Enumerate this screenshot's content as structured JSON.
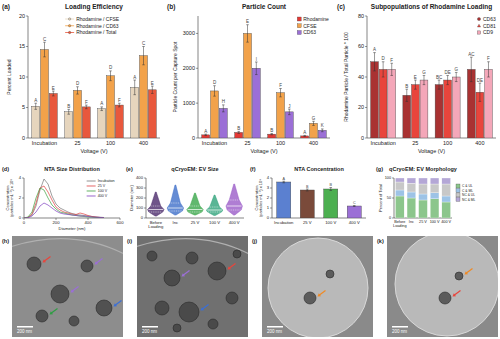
{
  "chart_data": [
    {
      "panel": "(a)",
      "type": "bar",
      "title": "Loading Efficiency",
      "x_label": "Voltage (V)",
      "y_label": "Percent Loaded",
      "categories": [
        "Incubation",
        "25",
        "100",
        "400"
      ],
      "ylim": [
        0,
        20
      ],
      "yticks": [
        0,
        5,
        10,
        15,
        20
      ],
      "legend": "top",
      "marker": "circle",
      "series": [
        {
          "name": "Rhodamine / CFSE",
          "color": "#e6d5bd",
          "values": [
            5.2,
            4.3,
            4.8,
            8.3
          ],
          "errors": [
            0.5,
            0.4,
            0.3,
            1.2
          ],
          "annotations": [
            "A",
            "B",
            "A",
            "A"
          ]
        },
        {
          "name": "Rhodamine / CD63",
          "color": "#f2a24a",
          "values": [
            14.5,
            7.8,
            10.2,
            13.5
          ],
          "errors": [
            1.2,
            0.6,
            0.8,
            1.5
          ],
          "annotations": [
            "C",
            "D",
            "D",
            "C"
          ]
        },
        {
          "name": "Rhodamine / Total",
          "color": "#e8583d",
          "values": [
            7.3,
            5.1,
            5.4,
            7.9
          ],
          "errors": [
            0.4,
            0.3,
            0.3,
            0.6
          ],
          "annotations": [
            "E",
            "F",
            "F",
            "E"
          ]
        }
      ]
    },
    {
      "panel": "(b)",
      "type": "bar",
      "title": "Particle Count",
      "x_label": "Voltage (V)",
      "y_label": "Particle Count per Capture Spot",
      "categories": [
        "Incubation",
        "25",
        "100",
        "400"
      ],
      "ylim": [
        0,
        3500
      ],
      "yticks": [
        0,
        1000,
        2000,
        3000
      ],
      "legend": "top-right",
      "series": [
        {
          "name": "Rhodamine",
          "color": "#e53935",
          "values": [
            90,
            160,
            110,
            60
          ],
          "errors": [
            20,
            30,
            20,
            15
          ],
          "annotations": [
            "A",
            "B",
            "B",
            "A"
          ]
        },
        {
          "name": "CFSE",
          "color": "#f2a24a",
          "values": [
            1350,
            3000,
            1300,
            420
          ],
          "errors": [
            150,
            250,
            120,
            60
          ],
          "annotations": [
            "D",
            "E",
            "F",
            "G"
          ]
        },
        {
          "name": "CD63",
          "color": "#9b6fd6",
          "values": [
            850,
            2000,
            750,
            220
          ],
          "errors": [
            100,
            180,
            80,
            40
          ],
          "annotations": [
            "H",
            "I",
            "J",
            "K"
          ]
        }
      ]
    },
    {
      "panel": "(c)",
      "type": "bar",
      "title": "Subpopulations of Rhodamine Loading",
      "x_label": "Voltage (V)",
      "y_label": "Rhodamine Particle / Total Particle * 100",
      "categories": [
        "Incubation",
        "25",
        "100",
        "400"
      ],
      "ylim": [
        0,
        80
      ],
      "yticks": [
        0,
        20,
        40,
        60,
        80
      ],
      "legend": "top-right",
      "series": [
        {
          "name": "CD63",
          "color": "#a93232",
          "marker": "circle",
          "values": [
            50,
            28,
            35,
            45
          ],
          "errors": [
            6,
            4,
            3,
            8
          ],
          "annotations": [
            "A",
            "B",
            "BC",
            "AC"
          ]
        },
        {
          "name": "CD81",
          "color": "#e8453c",
          "marker": "triangle",
          "values": [
            45,
            35,
            38,
            30
          ],
          "errors": [
            5,
            3,
            3,
            6
          ],
          "annotations": [
            "D",
            "E",
            "DE",
            "DE"
          ]
        },
        {
          "name": "CD9",
          "color": "#f4a7b9",
          "marker": "square",
          "values": [
            45,
            38,
            40,
            45
          ],
          "errors": [
            4,
            3,
            3,
            5
          ],
          "annotations": [
            "F",
            "G",
            "G",
            "F"
          ]
        }
      ]
    },
    {
      "panel": "(d)",
      "type": "line",
      "title": "NTA Size Distribution",
      "x_label": "Diameter (nm)",
      "y_label": "Concentration (particles mL⁻¹) x 10⁸",
      "x": [
        0,
        25,
        50,
        75,
        100,
        125,
        150,
        175,
        200,
        225,
        250,
        275,
        300,
        325,
        350,
        375,
        400,
        425,
        450,
        475,
        500
      ],
      "xlim": [
        0,
        600
      ],
      "xticks": [
        0,
        200,
        400,
        600
      ],
      "ylim": [
        0,
        4
      ],
      "yticks": [
        0,
        2,
        4
      ],
      "legend": "top-right",
      "series": [
        {
          "name": "Incubation",
          "color": "#777777",
          "values": [
            0,
            0.05,
            0.3,
            1.2,
            2.8,
            3.9,
            3.4,
            2.2,
            1.4,
            1.0,
            0.8,
            0.6,
            0.45,
            0.35,
            0.3,
            0.25,
            0.2,
            0.15,
            0.1,
            0.08,
            0.05
          ]
        },
        {
          "name": "25 V",
          "color": "#e04040",
          "values": [
            0,
            0.05,
            0.4,
            1.5,
            3.0,
            3.2,
            2.6,
            1.8,
            1.1,
            0.8,
            0.6,
            0.5,
            0.4,
            0.35,
            0.5,
            0.4,
            0.25,
            0.15,
            0.1,
            0.05,
            0.03
          ]
        },
        {
          "name": "100 V",
          "color": "#40a040",
          "values": [
            0,
            0.1,
            0.6,
            2.0,
            3.0,
            2.8,
            2.0,
            1.3,
            0.9,
            0.6,
            0.5,
            0.4,
            0.3,
            0.25,
            0.2,
            0.15,
            0.1,
            0.08,
            0.05,
            0.03,
            0.02
          ]
        },
        {
          "name": "400 V",
          "color": "#8040c0",
          "values": [
            0,
            0.02,
            0.2,
            0.6,
            1.2,
            1.5,
            1.3,
            1.0,
            0.7,
            0.5,
            0.4,
            0.35,
            0.3,
            0.25,
            0.2,
            0.2,
            0.15,
            0.1,
            0.08,
            0.05,
            0.03
          ]
        }
      ]
    },
    {
      "panel": "(e)",
      "type": "violin",
      "title": "qCryoEM: EV Size",
      "y_label": "Diameter (nm)",
      "categories": [
        "Before Loading",
        "Inc",
        "25 V",
        "100 V",
        "400 V"
      ],
      "ylim": [
        0,
        400
      ],
      "yticks": [
        0,
        100,
        200,
        300,
        400
      ],
      "colors": [
        "#4b2a6b",
        "#3f6fc9",
        "#3aa64a",
        "#2fa37a",
        "#9b5cc8"
      ],
      "min": [
        20,
        30,
        30,
        25,
        30
      ],
      "q1": [
        60,
        70,
        60,
        60,
        80
      ],
      "median": [
        85,
        100,
        85,
        80,
        120
      ],
      "q3": [
        120,
        150,
        120,
        110,
        180
      ],
      "max": [
        260,
        330,
        250,
        230,
        340
      ]
    },
    {
      "panel": "(f)",
      "type": "bar",
      "title": "NTA Concentration",
      "y_label": "Concentration (particles mL⁻¹) x 10⁹",
      "categories": [
        "Incubation",
        "25 V",
        "100 V",
        "400 V"
      ],
      "values": [
        3.6,
        2.8,
        2.9,
        1.2
      ],
      "errors": [
        0.08,
        0.1,
        0.15,
        0.05
      ],
      "annotations": [
        "A",
        "B",
        "B",
        "C"
      ],
      "colors": [
        "#5b80d0",
        "#7a4a3a",
        "#4caf50",
        "#9b6fd6"
      ],
      "ylim": [
        0,
        4
      ],
      "yticks": [
        0,
        1,
        2,
        3,
        4
      ]
    },
    {
      "panel": "(g)",
      "type": "bar",
      "stacked": true,
      "title": "qCryoEM: EV Morphology",
      "y_label": "Percent of Total",
      "categories": [
        "Before Loading",
        "Inc",
        "25 V",
        "100 V",
        "400 V"
      ],
      "ylim": [
        0,
        100
      ],
      "yticks": [
        0,
        50,
        100
      ],
      "legend": "right",
      "series": [
        {
          "name": "C & UL",
          "color": "#8cc68c",
          "values": [
            55,
            50,
            45,
            48,
            40
          ]
        },
        {
          "name": "C & ML",
          "color": "#9dc3e6",
          "values": [
            15,
            15,
            15,
            15,
            15
          ]
        },
        {
          "name": "NC & UL",
          "color": "#c8c8c8",
          "values": [
            20,
            22,
            25,
            22,
            30
          ]
        },
        {
          "name": "NC & ML",
          "color": "#b4a7d6",
          "values": [
            10,
            13,
            15,
            15,
            15
          ]
        }
      ]
    }
  ],
  "images": [
    {
      "panel": "(h)",
      "scale_bar": "200 nm"
    },
    {
      "panel": "(i)",
      "scale_bar": "200 nm"
    },
    {
      "panel": "(j)",
      "scale_bar": "200 nm"
    },
    {
      "panel": "(k)",
      "scale_bar": "200 nm"
    }
  ]
}
